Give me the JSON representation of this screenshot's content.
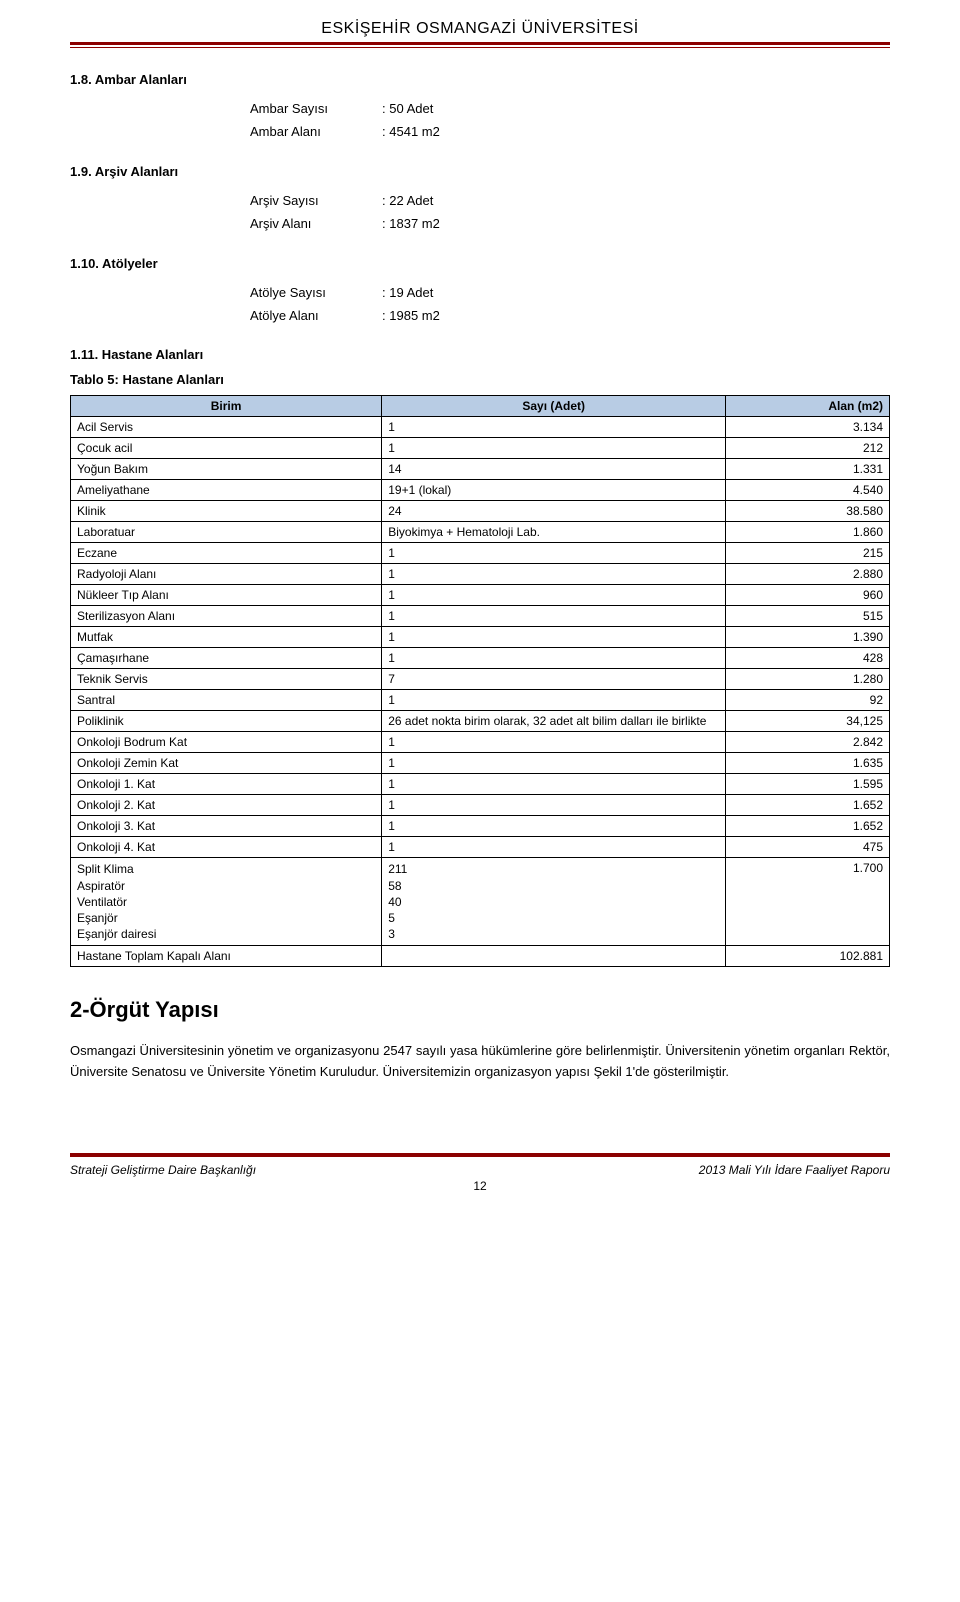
{
  "colors": {
    "rule_dark": "#8b0000",
    "table_header_bg": "#b8cce4"
  },
  "header": {
    "title": "ESKİŞEHİR OSMANGAZİ ÜNİVERSİTESİ"
  },
  "sections": {
    "s18": {
      "heading": "1.8. Ambar Alanları",
      "rows": [
        {
          "label": "Ambar Sayısı",
          "value": "50 Adet"
        },
        {
          "label": "Ambar Alanı",
          "value": "4541 m2"
        }
      ]
    },
    "s19": {
      "heading": "1.9. Arşiv Alanları",
      "rows": [
        {
          "label": "Arşiv Sayısı",
          "value": "22 Adet"
        },
        {
          "label": "Arşiv Alanı",
          "value": "1837 m2"
        }
      ]
    },
    "s110": {
      "heading": "1.10. Atölyeler",
      "rows": [
        {
          "label": "Atölye Sayısı",
          "value": "19 Adet"
        },
        {
          "label": "Atölye Alanı",
          "value": "1985 m2"
        }
      ]
    },
    "s111": {
      "heading": "1.11. Hastane Alanları"
    }
  },
  "table": {
    "caption": "Tablo 5: Hastane Alanları",
    "headers": {
      "c1": "Birim",
      "c2": "Sayı (Adet)",
      "c3": "Alan (m2)"
    },
    "rows": [
      {
        "c1": "Acil Servis",
        "c2": "1",
        "c3": "3.134"
      },
      {
        "c1": "Çocuk acil",
        "c2": "1",
        "c3": "212"
      },
      {
        "c1": "Yoğun Bakım",
        "c2": "14",
        "c3": "1.331"
      },
      {
        "c1": "Ameliyathane",
        "c2": "19+1 (lokal)",
        "c3": "4.540"
      },
      {
        "c1": "Klinik",
        "c2": "24",
        "c3": "38.580"
      },
      {
        "c1": "Laboratuar",
        "c2": "Biyokimya + Hematoloji Lab.",
        "c3": "1.860"
      },
      {
        "c1": "Eczane",
        "c2": "1",
        "c3": "215"
      },
      {
        "c1": "Radyoloji Alanı",
        "c2": "1",
        "c3": "2.880"
      },
      {
        "c1": "Nükleer Tıp Alanı",
        "c2": "1",
        "c3": "960"
      },
      {
        "c1": "Sterilizasyon Alanı",
        "c2": "1",
        "c3": "515"
      },
      {
        "c1": "Mutfak",
        "c2": "1",
        "c3": "1.390"
      },
      {
        "c1": "Çamaşırhane",
        "c2": "1",
        "c3": "428"
      },
      {
        "c1": "Teknik Servis",
        "c2": "7",
        "c3": "1.280"
      },
      {
        "c1": "Santral",
        "c2": "1",
        "c3": "92"
      },
      {
        "c1": "Poliklinik",
        "c2": "26 adet nokta birim olarak, 32 adet alt bilim dalları ile birlikte",
        "c3": "34,125"
      },
      {
        "c1": "Onkoloji Bodrum Kat",
        "c2": "1",
        "c3": "2.842"
      },
      {
        "c1": "Onkoloji Zemin Kat",
        "c2": "1",
        "c3": "1.635"
      },
      {
        "c1": "Onkoloji 1. Kat",
        "c2": "1",
        "c3": "1.595"
      },
      {
        "c1": "Onkoloji 2. Kat",
        "c2": "1",
        "c3": "1.652"
      },
      {
        "c1": "Onkoloji 3. Kat",
        "c2": "1",
        "c3": "1.652"
      },
      {
        "c1": "Onkoloji 4. Kat",
        "c2": "1",
        "c3": "475"
      }
    ],
    "multiRow": {
      "lines1": [
        "Split Klima",
        "Aspiratör",
        "Ventilatör",
        "Eşanjör",
        "Eşanjör dairesi"
      ],
      "lines2": [
        "211",
        "58",
        "40",
        "5",
        "3"
      ],
      "c3": "1.700"
    },
    "totalRow": {
      "c1": "Hastane Toplam Kapalı Alanı",
      "c2": "",
      "c3": "102.881"
    }
  },
  "orgut": {
    "heading": "2-Örgüt Yapısı",
    "text": "Osmangazi Üniversitesinin yönetim ve organizasyonu 2547 sayılı yasa hükümlerine göre belirlenmiştir. Üniversitenin yönetim organları Rektör, Üniversite Senatosu ve Üniversite Yönetim Kuruludur. Üniversitemizin organizasyon yapısı Şekil 1'de gösterilmiştir."
  },
  "footer": {
    "left": "Strateji Geliştirme Daire Başkanlığı",
    "right": "2013 Mali Yılı İdare Faaliyet Raporu",
    "page": "12"
  }
}
